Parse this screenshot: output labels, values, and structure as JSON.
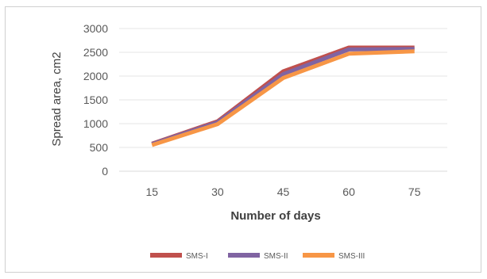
{
  "chart_data": {
    "type": "line",
    "x": [
      15,
      30,
      45,
      60,
      75
    ],
    "xlabel": "Number of days",
    "ylabel": "Spread area, cm2",
    "ylim": [
      0,
      3000
    ],
    "yticks": [
      0,
      500,
      1000,
      1500,
      2000,
      2500,
      3000
    ],
    "grid": true,
    "legend_position": "bottom",
    "series": [
      {
        "name": "SMS-I",
        "color": "#c0504d",
        "values": [
          580,
          1050,
          2100,
          2600,
          2600
        ]
      },
      {
        "name": "SMS-II",
        "color": "#8064a2",
        "values": [
          570,
          1030,
          2040,
          2560,
          2570
        ]
      },
      {
        "name": "SMS-III",
        "color": "#f79646",
        "values": [
          550,
          990,
          1960,
          2470,
          2520
        ]
      }
    ]
  }
}
